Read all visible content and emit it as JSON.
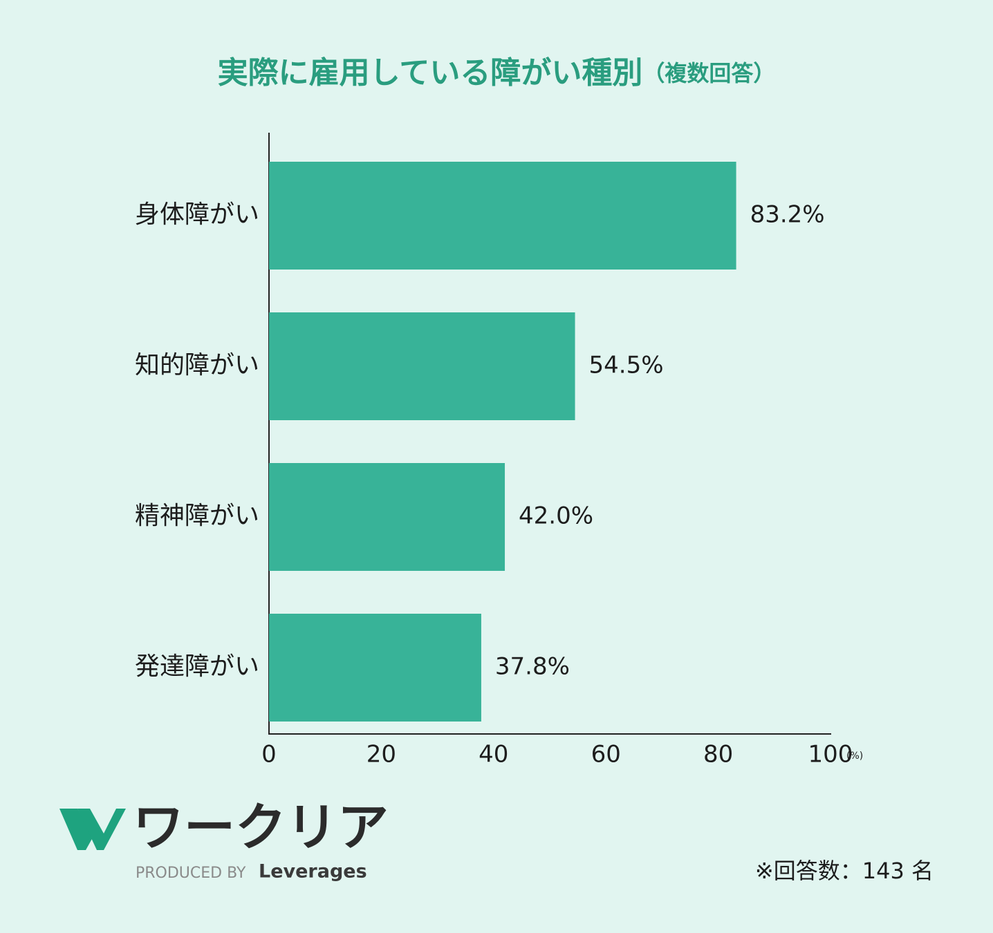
{
  "chart_data": {
    "type": "hbar",
    "title": "実際に雇用している障がい種別",
    "title_note": "（複数回答）",
    "categories": [
      "身体障がい",
      "知的障がい",
      "精神障がい",
      "発達障がい"
    ],
    "values": [
      83.2,
      54.5,
      42.0,
      37.8
    ],
    "value_labels": [
      "83.2%",
      "54.5%",
      "42.0%",
      "37.8%"
    ],
    "color": "#38b398",
    "xlim": [
      0,
      100
    ],
    "xticks": [
      0,
      20,
      40,
      60,
      80,
      100
    ],
    "x_unit": "(%)",
    "footnote": "※回答数：143 名"
  },
  "logo": {
    "name": "ワークリア",
    "produced_by": "PRODUCED BY",
    "company": "Leverages"
  }
}
